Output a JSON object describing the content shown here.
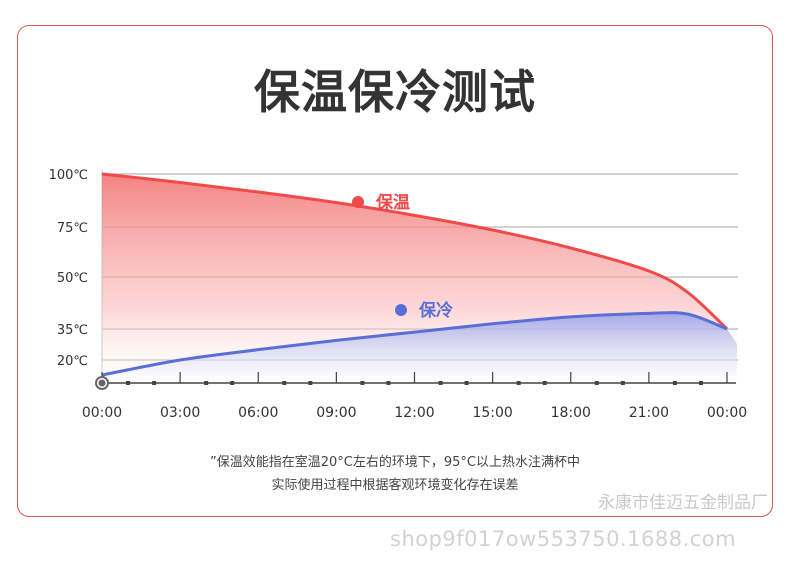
{
  "title": "保温保冷测试",
  "chart_data": {
    "type": "area",
    "y_tick_labels": [
      {
        "label": "100℃",
        "value": 100
      },
      {
        "label": "75℃",
        "value": 75
      },
      {
        "label": "50℃",
        "value": 50
      },
      {
        "label": "35℃",
        "value": 35
      },
      {
        "label": "20℃",
        "value": 20
      }
    ],
    "x_tick_labels": [
      "00:00",
      "03:00",
      "06:00",
      "09:00",
      "12:00",
      "15:00",
      "18:00",
      "21:00",
      "00:00"
    ],
    "x_hours": [
      0,
      3,
      6,
      9,
      12,
      15,
      18,
      21,
      24
    ],
    "series": [
      {
        "name": "保温",
        "color": "#f04a4a",
        "points": [
          [
            0,
            100
          ],
          [
            3,
            96
          ],
          [
            6,
            91.5
          ],
          [
            9,
            86.5
          ],
          [
            12,
            80.5
          ],
          [
            15,
            73.5
          ],
          [
            18,
            64.5
          ],
          [
            21,
            53
          ],
          [
            22.5,
            45.5
          ],
          [
            24,
            35
          ]
        ]
      },
      {
        "name": "保冷",
        "color": "#5a6fd6",
        "points": [
          [
            0,
            15
          ],
          [
            3,
            20
          ],
          [
            6,
            25
          ],
          [
            9,
            29.5
          ],
          [
            12,
            33.5
          ],
          [
            15,
            36.5
          ],
          [
            18,
            38.5
          ],
          [
            21,
            39.5
          ],
          [
            22.5,
            39.3
          ],
          [
            24,
            35
          ]
        ]
      }
    ],
    "legend_placement": "inline"
  },
  "notes": {
    "line1": "”保温效能指在室温20°C左右的环境下，95°C以上热水注满杯中",
    "line2": "实际使用过程中根据客观环境变化存在误差"
  },
  "watermarks": {
    "shop_name": "永康市佳迈五金制品厂",
    "url": "shop9f017ow553750.1688.com"
  }
}
